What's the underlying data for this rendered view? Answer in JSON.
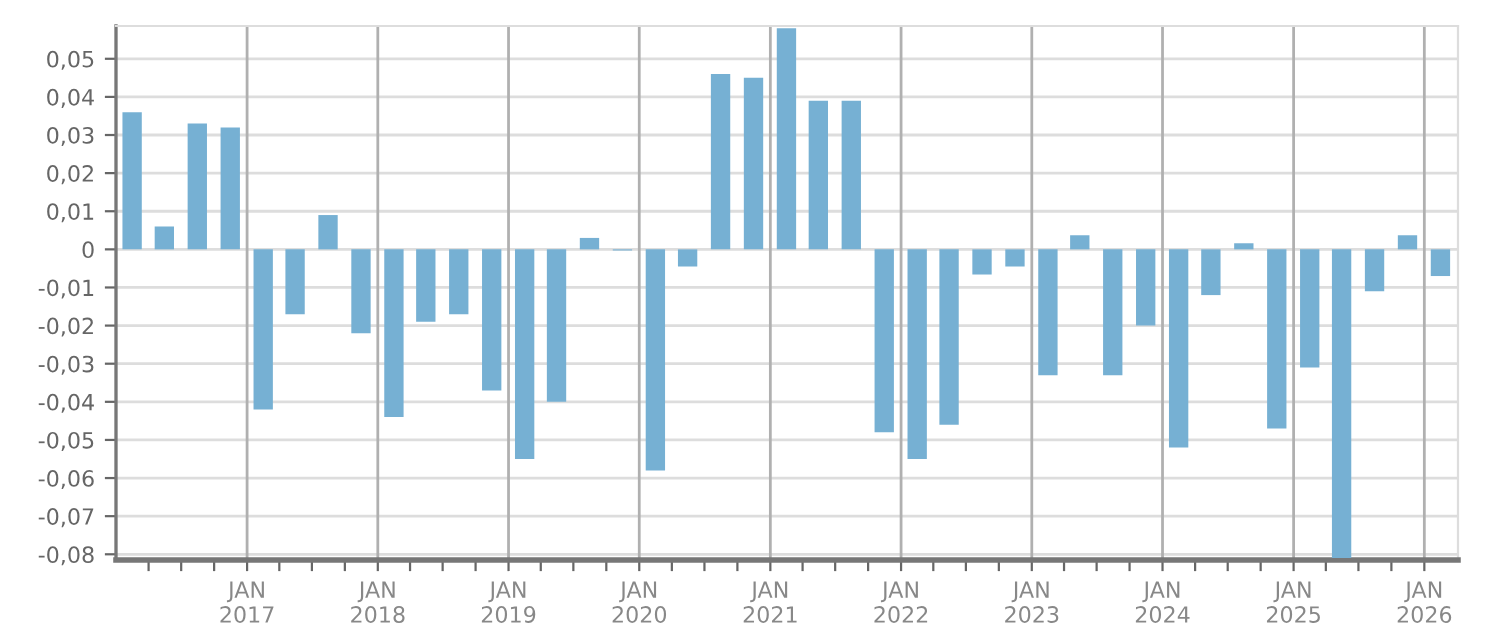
{
  "chart_data": {
    "type": "bar",
    "color": "#76b0d3",
    "grid": true,
    "x": [
      "2016-02-15",
      "2016-05-15",
      "2016-08-15",
      "2016-11-15",
      "2017-02-15",
      "2017-05-15",
      "2017-08-15",
      "2017-11-15",
      "2018-02-15",
      "2018-05-15",
      "2018-08-15",
      "2018-11-15",
      "2019-02-15",
      "2019-05-15",
      "2019-08-15",
      "2019-11-15",
      "2020-02-15",
      "2020-05-15",
      "2020-08-15",
      "2020-11-15",
      "2021-02-15",
      "2021-05-15",
      "2021-08-15",
      "2021-11-15",
      "2022-02-15",
      "2022-05-15",
      "2022-08-15",
      "2022-11-15",
      "2023-02-15",
      "2023-05-15",
      "2023-08-15",
      "2023-11-15",
      "2024-02-15",
      "2024-05-15",
      "2024-08-15",
      "2024-11-15",
      "2025-02-15",
      "2025-05-15",
      "2025-08-15",
      "2025-11-15",
      "2026-02-15"
    ],
    "values": [
      0.036,
      0.006,
      0.033,
      0.032,
      -0.042,
      -0.017,
      0.009,
      -0.022,
      -0.044,
      -0.019,
      -0.017,
      -0.037,
      -0.055,
      -0.04,
      0.003,
      -0.0003,
      -0.058,
      -0.0045,
      0.046,
      0.045,
      0.058,
      0.039,
      0.039,
      -0.048,
      -0.055,
      -0.046,
      -0.0066,
      -0.0045,
      -0.033,
      0.0037,
      -0.033,
      -0.02,
      -0.052,
      -0.012,
      0.0016,
      -0.047,
      -0.031,
      -0.081,
      -0.011,
      0.0037,
      -0.007
    ],
    "xlim": [
      "2016-01-01",
      "2026-04-05"
    ],
    "xticks": [
      {
        "value": "2016-04-01",
        "label": null
      },
      {
        "value": "2016-07-01",
        "label": null
      },
      {
        "value": "2016-10-01",
        "label": null
      },
      {
        "value": "2017-01-01",
        "label": "JAN\n2017"
      },
      {
        "value": "2017-04-01",
        "label": null
      },
      {
        "value": "2017-07-01",
        "label": null
      },
      {
        "value": "2017-10-01",
        "label": null
      },
      {
        "value": "2018-01-01",
        "label": "JAN\n2018"
      },
      {
        "value": "2018-04-01",
        "label": null
      },
      {
        "value": "2018-07-01",
        "label": null
      },
      {
        "value": "2018-10-01",
        "label": null
      },
      {
        "value": "2019-01-01",
        "label": "JAN\n2019"
      },
      {
        "value": "2019-04-01",
        "label": null
      },
      {
        "value": "2019-07-01",
        "label": null
      },
      {
        "value": "2019-10-01",
        "label": null
      },
      {
        "value": "2020-01-01",
        "label": "JAN\n2020"
      },
      {
        "value": "2020-04-01",
        "label": null
      },
      {
        "value": "2020-07-01",
        "label": null
      },
      {
        "value": "2020-10-01",
        "label": null
      },
      {
        "value": "2021-01-01",
        "label": "JAN\n2021"
      },
      {
        "value": "2021-04-01",
        "label": null
      },
      {
        "value": "2021-07-01",
        "label": null
      },
      {
        "value": "2021-10-01",
        "label": null
      },
      {
        "value": "2022-01-01",
        "label": "JAN\n2022"
      },
      {
        "value": "2022-04-01",
        "label": null
      },
      {
        "value": "2022-07-01",
        "label": null
      },
      {
        "value": "2022-10-01",
        "label": null
      },
      {
        "value": "2023-01-01",
        "label": "JAN\n2023"
      },
      {
        "value": "2023-04-01",
        "label": null
      },
      {
        "value": "2023-07-01",
        "label": null
      },
      {
        "value": "2023-10-01",
        "label": null
      },
      {
        "value": "2024-01-01",
        "label": "JAN\n2024"
      },
      {
        "value": "2024-04-01",
        "label": null
      },
      {
        "value": "2024-07-01",
        "label": null
      },
      {
        "value": "2024-10-01",
        "label": null
      },
      {
        "value": "2025-01-01",
        "label": "JAN\n2025"
      },
      {
        "value": "2025-04-01",
        "label": null
      },
      {
        "value": "2025-07-01",
        "label": null
      },
      {
        "value": "2025-10-01",
        "label": null
      },
      {
        "value": "2026-01-01",
        "label": "JAN\n2026"
      }
    ],
    "ylim": [
      -0.0815,
      0.0586
    ],
    "yticks": [
      {
        "value": -0.08,
        "label": "-0,08"
      },
      {
        "value": -0.07,
        "label": "-0,07"
      },
      {
        "value": -0.06,
        "label": "-0,06"
      },
      {
        "value": -0.05,
        "label": "-0,05"
      },
      {
        "value": -0.04,
        "label": "-0,04"
      },
      {
        "value": -0.03,
        "label": "-0,03"
      },
      {
        "value": -0.02,
        "label": "-0,02"
      },
      {
        "value": -0.01,
        "label": "-0,01"
      },
      {
        "value": 0,
        "label": "0"
      },
      {
        "value": 0.01,
        "label": "0,01"
      },
      {
        "value": 0.02,
        "label": "0,02"
      },
      {
        "value": 0.03,
        "label": "0,03"
      },
      {
        "value": 0.04,
        "label": "0,04"
      },
      {
        "value": 0.05,
        "label": "0,05"
      }
    ]
  }
}
